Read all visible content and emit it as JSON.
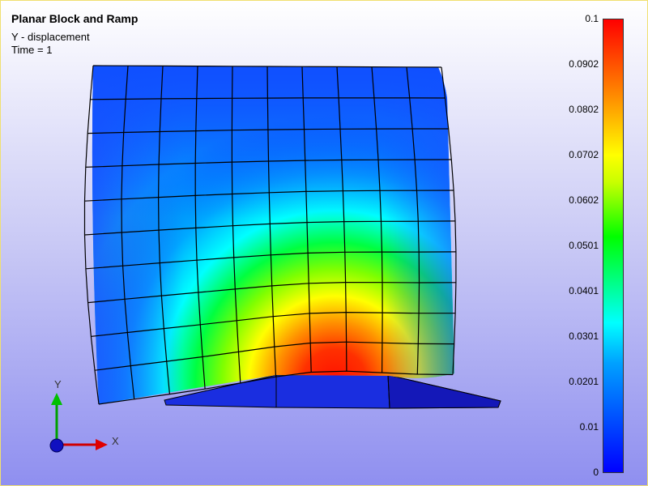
{
  "title": "Planar Block and Ramp",
  "variable": "Y - displacement",
  "time_label": "Time = 1",
  "legend": {
    "ticks": [
      "0.1",
      "0.0902",
      "0.0802",
      "0.0702",
      "0.0602",
      "0.0501",
      "0.0401",
      "0.0301",
      "0.0201",
      "0.01",
      "0"
    ],
    "colors": [
      "#0000ff",
      "#00a0ff",
      "#00ffff",
      "#00ff00",
      "#c8ff00",
      "#ffff00",
      "#ff8c00",
      "#ff0000"
    ]
  },
  "axes": {
    "x_label": "X",
    "y_label": "Y"
  }
}
